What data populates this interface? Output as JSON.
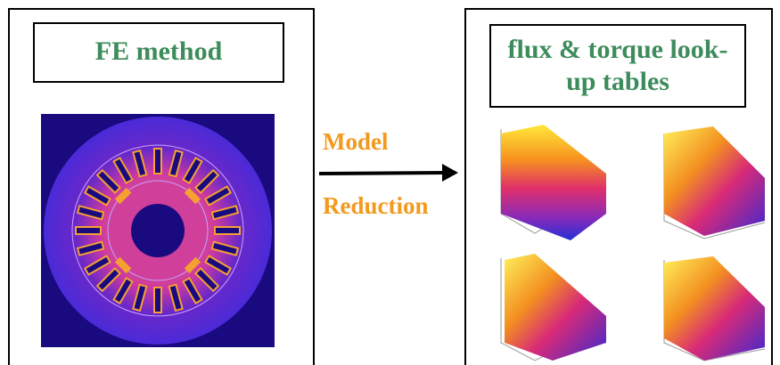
{
  "left_panel": {
    "title": "FE method"
  },
  "arrow": {
    "label_lines": [
      "Model",
      "Reduction"
    ]
  },
  "right_panel": {
    "title_lines": [
      "flux & torque look-",
      "up tables"
    ]
  }
}
